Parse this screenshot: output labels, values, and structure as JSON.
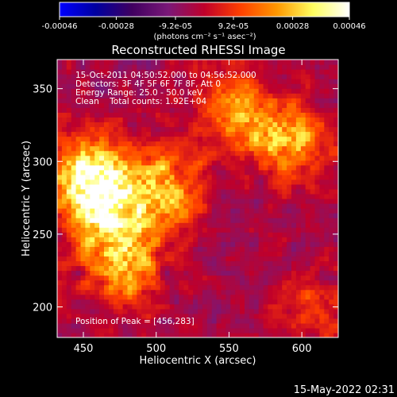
{
  "chart_data": {
    "type": "heatmap",
    "title": "Reconstructed RHESSI Image",
    "xlabel": "Heliocentric X (arcsec)",
    "ylabel": "Heliocentric Y (arcsec)",
    "xlim": [
      432,
      625
    ],
    "ylim": [
      179,
      370
    ],
    "xticks": [
      450,
      500,
      550,
      600
    ],
    "yticks": [
      200,
      250,
      300,
      350
    ],
    "colorbar": {
      "range": [
        -0.00046,
        0.00046
      ],
      "tick_values": [
        -0.00046,
        -0.00028,
        -9.2e-05,
        9.2e-05,
        0.00028,
        0.00046
      ],
      "tick_labels": [
        "-0.00046",
        "-0.00028",
        "-9.2e-05",
        "9.2e-05",
        "0.00028",
        "0.00046"
      ],
      "units": "(photons cm⁻² s⁻¹ asec⁻²)",
      "colors": [
        "#0000ff",
        "#0000a0",
        "#400060",
        "#7a1878",
        "#c0002a",
        "#ff4000",
        "#ff9800",
        "#ffff60",
        "#ffffff"
      ]
    },
    "annotations": {
      "time": "15-Oct-2011 04:50:52.000 to 04:56:52.000",
      "detectors": "Detectors: 3F 4F 5F 6F 7F 8F, Att 0",
      "energy": "Energy Range: 25.0 - 50.0 keV",
      "clean": "Clean    Total counts: 1.92E+04",
      "peak": "Position of Peak = [456,283]"
    },
    "peak": [
      456,
      283
    ],
    "sources": [
      {
        "x": 455,
        "y": 290,
        "amp": 0.00046
      },
      {
        "x": 470,
        "y": 262,
        "amp": 0.00036
      },
      {
        "x": 478,
        "y": 228,
        "amp": 0.00028
      },
      {
        "x": 507,
        "y": 282,
        "amp": 0.0003
      },
      {
        "x": 590,
        "y": 315,
        "amp": 0.00028
      },
      {
        "x": 555,
        "y": 335,
        "amp": 0.00024
      },
      {
        "x": 610,
        "y": 200,
        "amp": 0.00012
      }
    ]
  },
  "footer": {
    "timestamp": "15-May-2022 02:31"
  }
}
